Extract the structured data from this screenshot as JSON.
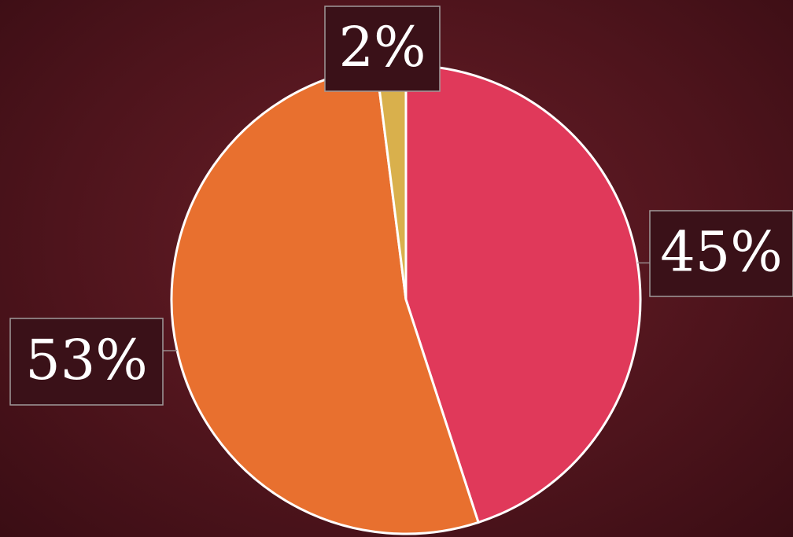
{
  "chart_data": {
    "type": "pie",
    "values": [
      45,
      53,
      2
    ],
    "value_labels": [
      "45%",
      "53%",
      "2%"
    ],
    "colors": [
      "#e0395a",
      "#e8702f",
      "#d9b04c"
    ]
  }
}
